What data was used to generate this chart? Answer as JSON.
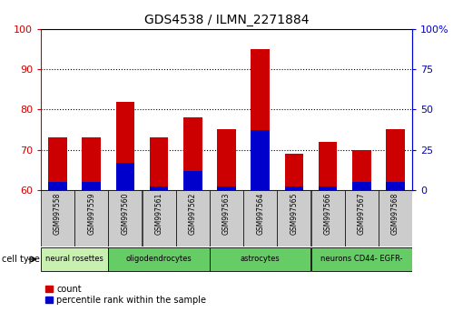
{
  "title": "GDS4538 / ILMN_2271884",
  "samples": [
    "GSM997558",
    "GSM997559",
    "GSM997560",
    "GSM997561",
    "GSM997562",
    "GSM997563",
    "GSM997564",
    "GSM997565",
    "GSM997566",
    "GSM997567",
    "GSM997568"
  ],
  "count_values": [
    73,
    73,
    82,
    73,
    78,
    75,
    95,
    69,
    72,
    70,
    75
  ],
  "percentile_pct": [
    5,
    5,
    17,
    2,
    12,
    2,
    37,
    2,
    2,
    5,
    5
  ],
  "ymin": 60,
  "ymax": 100,
  "y_left_ticks": [
    60,
    70,
    80,
    90,
    100
  ],
  "y_right_labels": [
    "0",
    "25",
    "50",
    "75",
    "100%"
  ],
  "cell_type_groups": [
    {
      "label": "neural rosettes",
      "start": 0,
      "end": 2,
      "color": "#c8f0b0"
    },
    {
      "label": "oligodendrocytes",
      "start": 2,
      "end": 5,
      "color": "#66cc66"
    },
    {
      "label": "astrocytes",
      "start": 5,
      "end": 8,
      "color": "#66cc66"
    },
    {
      "label": "neurons CD44- EGFR-",
      "start": 8,
      "end": 11,
      "color": "#66cc66"
    }
  ],
  "bar_color_red": "#cc0000",
  "bar_color_blue": "#0000cc",
  "bar_width": 0.55,
  "left_axis_color": "#cc0000",
  "right_axis_color": "#0000cc",
  "bg_color": "#ffffff",
  "label_bg": "#cccccc"
}
